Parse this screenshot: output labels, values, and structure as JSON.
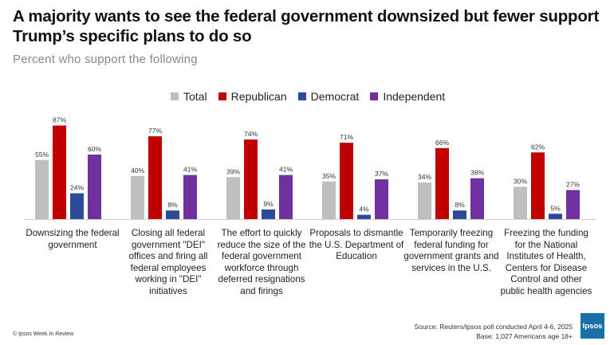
{
  "header": {
    "title": "A majority wants to see the federal government downsized but fewer support Trump’s specific plans to do so",
    "subtitle": "Percent who support the following"
  },
  "legend": [
    {
      "label": "Total",
      "color": "#bfbfbf"
    },
    {
      "label": "Republican",
      "color": "#c00000"
    },
    {
      "label": "Democrat",
      "color": "#2c4a9a"
    },
    {
      "label": "Independent",
      "color": "#7030a0"
    }
  ],
  "chart_data": {
    "type": "bar",
    "title": "A majority wants to see the federal government downsized but fewer support Trump’s specific plans to do so",
    "subtitle": "Percent who support the following",
    "categories": [
      "Downsizing the federal government",
      "Closing all federal government \"DEI\" offices and firing all federal employees working in \"DEI\" initiatives",
      "The effort to quickly reduce the size of the federal government workforce through deferred resignations and firings",
      "Proposals to dismantle the U.S. Department of Education",
      "Temporarily freezing federal funding for government grants and services in the U.S.",
      "Freezing the funding for the National Institutes of Health, Centers for Disease Control and other public health agencies"
    ],
    "series": [
      {
        "name": "Total",
        "color": "#bfbfbf",
        "values": [
          55,
          40,
          39,
          35,
          34,
          30
        ]
      },
      {
        "name": "Republican",
        "color": "#c00000",
        "values": [
          87,
          77,
          74,
          71,
          66,
          62
        ]
      },
      {
        "name": "Democrat",
        "color": "#2c4a9a",
        "values": [
          24,
          8,
          9,
          4,
          8,
          5
        ]
      },
      {
        "name": "Independent",
        "color": "#7030a0",
        "values": [
          60,
          41,
          41,
          37,
          38,
          27
        ]
      }
    ],
    "ylim": [
      0,
      100
    ],
    "value_suffix": "%",
    "legend_position": "top",
    "grid": false
  },
  "footer": {
    "credit": "© Ipsos Week In Review",
    "source_line1": "Source: Reuters/Ipsos poll conducted April 4-6, 2025",
    "source_line2": "Base: 1,027 Americans age 18+",
    "logo_text": "Ipsos"
  }
}
